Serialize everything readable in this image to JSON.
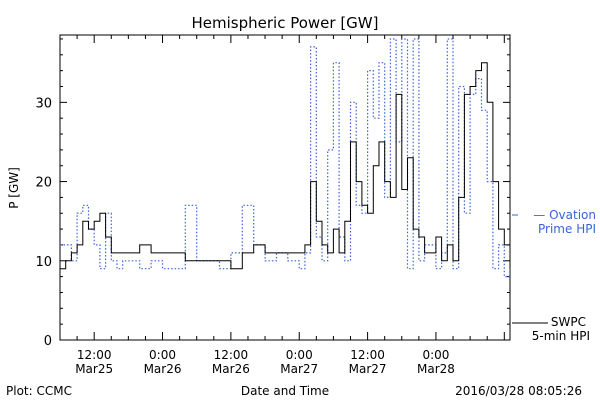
{
  "chart_data": {
    "type": "line",
    "title": "Hemispheric Power [GW]",
    "xlabel": "Date and Time",
    "ylabel": "P [GW]",
    "ylim": [
      0,
      38.5
    ],
    "xlim": [
      "2016-03-25T06:00",
      "2016-03-28T13:00"
    ],
    "yticks": [
      0,
      10,
      20,
      30
    ],
    "xticks": [
      {
        "t": "2016-03-25T12:00",
        "line1": "12:00",
        "line2": "Mar25"
      },
      {
        "t": "2016-03-26T00:00",
        "line1": "0:00",
        "line2": "Mar26"
      },
      {
        "t": "2016-03-26T12:00",
        "line1": "12:00",
        "line2": "Mar26"
      },
      {
        "t": "2016-03-27T00:00",
        "line1": "0:00",
        "line2": "Mar27"
      },
      {
        "t": "2016-03-27T12:00",
        "line1": "12:00",
        "line2": "Mar27"
      },
      {
        "t": "2016-03-28T00:00",
        "line1": "0:00",
        "line2": "Mar28"
      }
    ],
    "grid": false,
    "legend_placement": "right",
    "series": [
      {
        "name": "SWPC 5-min HPI",
        "color": "#000000",
        "style": "solid",
        "label_line1": "SWPC",
        "label_line2": "5-min HPI",
        "x": [
          "2016-03-25T06:00",
          "2016-03-25T07:00",
          "2016-03-25T08:00",
          "2016-03-25T09:00",
          "2016-03-25T10:00",
          "2016-03-25T11:00",
          "2016-03-25T12:00",
          "2016-03-25T13:00",
          "2016-03-25T14:00",
          "2016-03-25T15:00",
          "2016-03-25T16:00",
          "2016-03-25T17:00",
          "2016-03-25T18:00",
          "2016-03-25T20:00",
          "2016-03-25T22:00",
          "2016-03-26T00:00",
          "2016-03-26T02:00",
          "2016-03-26T04:00",
          "2016-03-26T06:00",
          "2016-03-26T08:00",
          "2016-03-26T10:00",
          "2016-03-26T12:00",
          "2016-03-26T14:00",
          "2016-03-26T16:00",
          "2016-03-26T18:00",
          "2016-03-26T20:00",
          "2016-03-26T22:00",
          "2016-03-27T00:00",
          "2016-03-27T01:00",
          "2016-03-27T02:00",
          "2016-03-27T03:00",
          "2016-03-27T04:00",
          "2016-03-27T05:00",
          "2016-03-27T06:00",
          "2016-03-27T07:00",
          "2016-03-27T08:00",
          "2016-03-27T09:00",
          "2016-03-27T10:00",
          "2016-03-27T11:00",
          "2016-03-27T12:00",
          "2016-03-27T13:00",
          "2016-03-27T14:00",
          "2016-03-27T15:00",
          "2016-03-27T16:00",
          "2016-03-27T17:00",
          "2016-03-27T18:00",
          "2016-03-27T19:00",
          "2016-03-27T20:00",
          "2016-03-27T21:00",
          "2016-03-27T22:00",
          "2016-03-28T00:00",
          "2016-03-28T01:00",
          "2016-03-28T02:00",
          "2016-03-28T03:00",
          "2016-03-28T04:00",
          "2016-03-28T05:00",
          "2016-03-28T06:00",
          "2016-03-28T07:00",
          "2016-03-28T08:00",
          "2016-03-28T09:00",
          "2016-03-28T10:00",
          "2016-03-28T11:00",
          "2016-03-28T12:00",
          "2016-03-28T13:00"
        ],
        "y": [
          9,
          10,
          11,
          12,
          15,
          14,
          15,
          16,
          13,
          11,
          11,
          11,
          11,
          12,
          11,
          11,
          11,
          10,
          10,
          10,
          10,
          9,
          11,
          12,
          11,
          11,
          11,
          11,
          12,
          20,
          15,
          12,
          11,
          14,
          11,
          15,
          25,
          20,
          17,
          16,
          22,
          25,
          20,
          18,
          31,
          19,
          23,
          14,
          13,
          11,
          13,
          10,
          12,
          10,
          18,
          31,
          32,
          34,
          35,
          30,
          20,
          14,
          12,
          12
        ]
      },
      {
        "name": "Ovation Prime HPI",
        "color": "#3a64d6",
        "style": "dotted",
        "label_line1": "— Ovation",
        "label_line2": "Prime HPI",
        "x": [
          "2016-03-25T06:00",
          "2016-03-25T07:00",
          "2016-03-25T08:00",
          "2016-03-25T09:00",
          "2016-03-25T10:00",
          "2016-03-25T11:00",
          "2016-03-25T12:00",
          "2016-03-25T13:00",
          "2016-03-25T14:00",
          "2016-03-25T15:00",
          "2016-03-25T16:00",
          "2016-03-25T17:00",
          "2016-03-25T18:00",
          "2016-03-25T20:00",
          "2016-03-25T22:00",
          "2016-03-26T00:00",
          "2016-03-26T02:00",
          "2016-03-26T04:00",
          "2016-03-26T06:00",
          "2016-03-26T08:00",
          "2016-03-26T10:00",
          "2016-03-26T12:00",
          "2016-03-26T14:00",
          "2016-03-26T16:00",
          "2016-03-26T18:00",
          "2016-03-26T20:00",
          "2016-03-26T22:00",
          "2016-03-27T00:00",
          "2016-03-27T01:00",
          "2016-03-27T02:00",
          "2016-03-27T03:00",
          "2016-03-27T04:00",
          "2016-03-27T05:00",
          "2016-03-27T06:00",
          "2016-03-27T07:00",
          "2016-03-27T08:00",
          "2016-03-27T09:00",
          "2016-03-27T10:00",
          "2016-03-27T11:00",
          "2016-03-27T12:00",
          "2016-03-27T13:00",
          "2016-03-27T14:00",
          "2016-03-27T15:00",
          "2016-03-27T16:00",
          "2016-03-27T17:00",
          "2016-03-27T18:00",
          "2016-03-27T19:00",
          "2016-03-27T20:00",
          "2016-03-27T21:00",
          "2016-03-27T22:00",
          "2016-03-28T00:00",
          "2016-03-28T01:00",
          "2016-03-28T02:00",
          "2016-03-28T03:00",
          "2016-03-28T04:00",
          "2016-03-28T05:00",
          "2016-03-28T06:00",
          "2016-03-28T07:00",
          "2016-03-28T08:00",
          "2016-03-28T09:00",
          "2016-03-28T10:00",
          "2016-03-28T11:00",
          "2016-03-28T12:00",
          "2016-03-28T13:00"
        ],
        "y": [
          12,
          12,
          10,
          16,
          17,
          14,
          12,
          9,
          16,
          10,
          9,
          10,
          10,
          9,
          10,
          9,
          9,
          17,
          10,
          10,
          9,
          11,
          17,
          12,
          10,
          11,
          10,
          9,
          11,
          37,
          13,
          10,
          24,
          35,
          13,
          10,
          30,
          17,
          16,
          34,
          28,
          35,
          18,
          38,
          25,
          38,
          9,
          38,
          10,
          12,
          9,
          11,
          38,
          9,
          32,
          16,
          31,
          33,
          29,
          20,
          9,
          12,
          8,
          9
        ]
      }
    ]
  },
  "footer": {
    "plot_credit": "Plot: CCMC",
    "timestamp": "2016/03/28 08:05:26"
  }
}
